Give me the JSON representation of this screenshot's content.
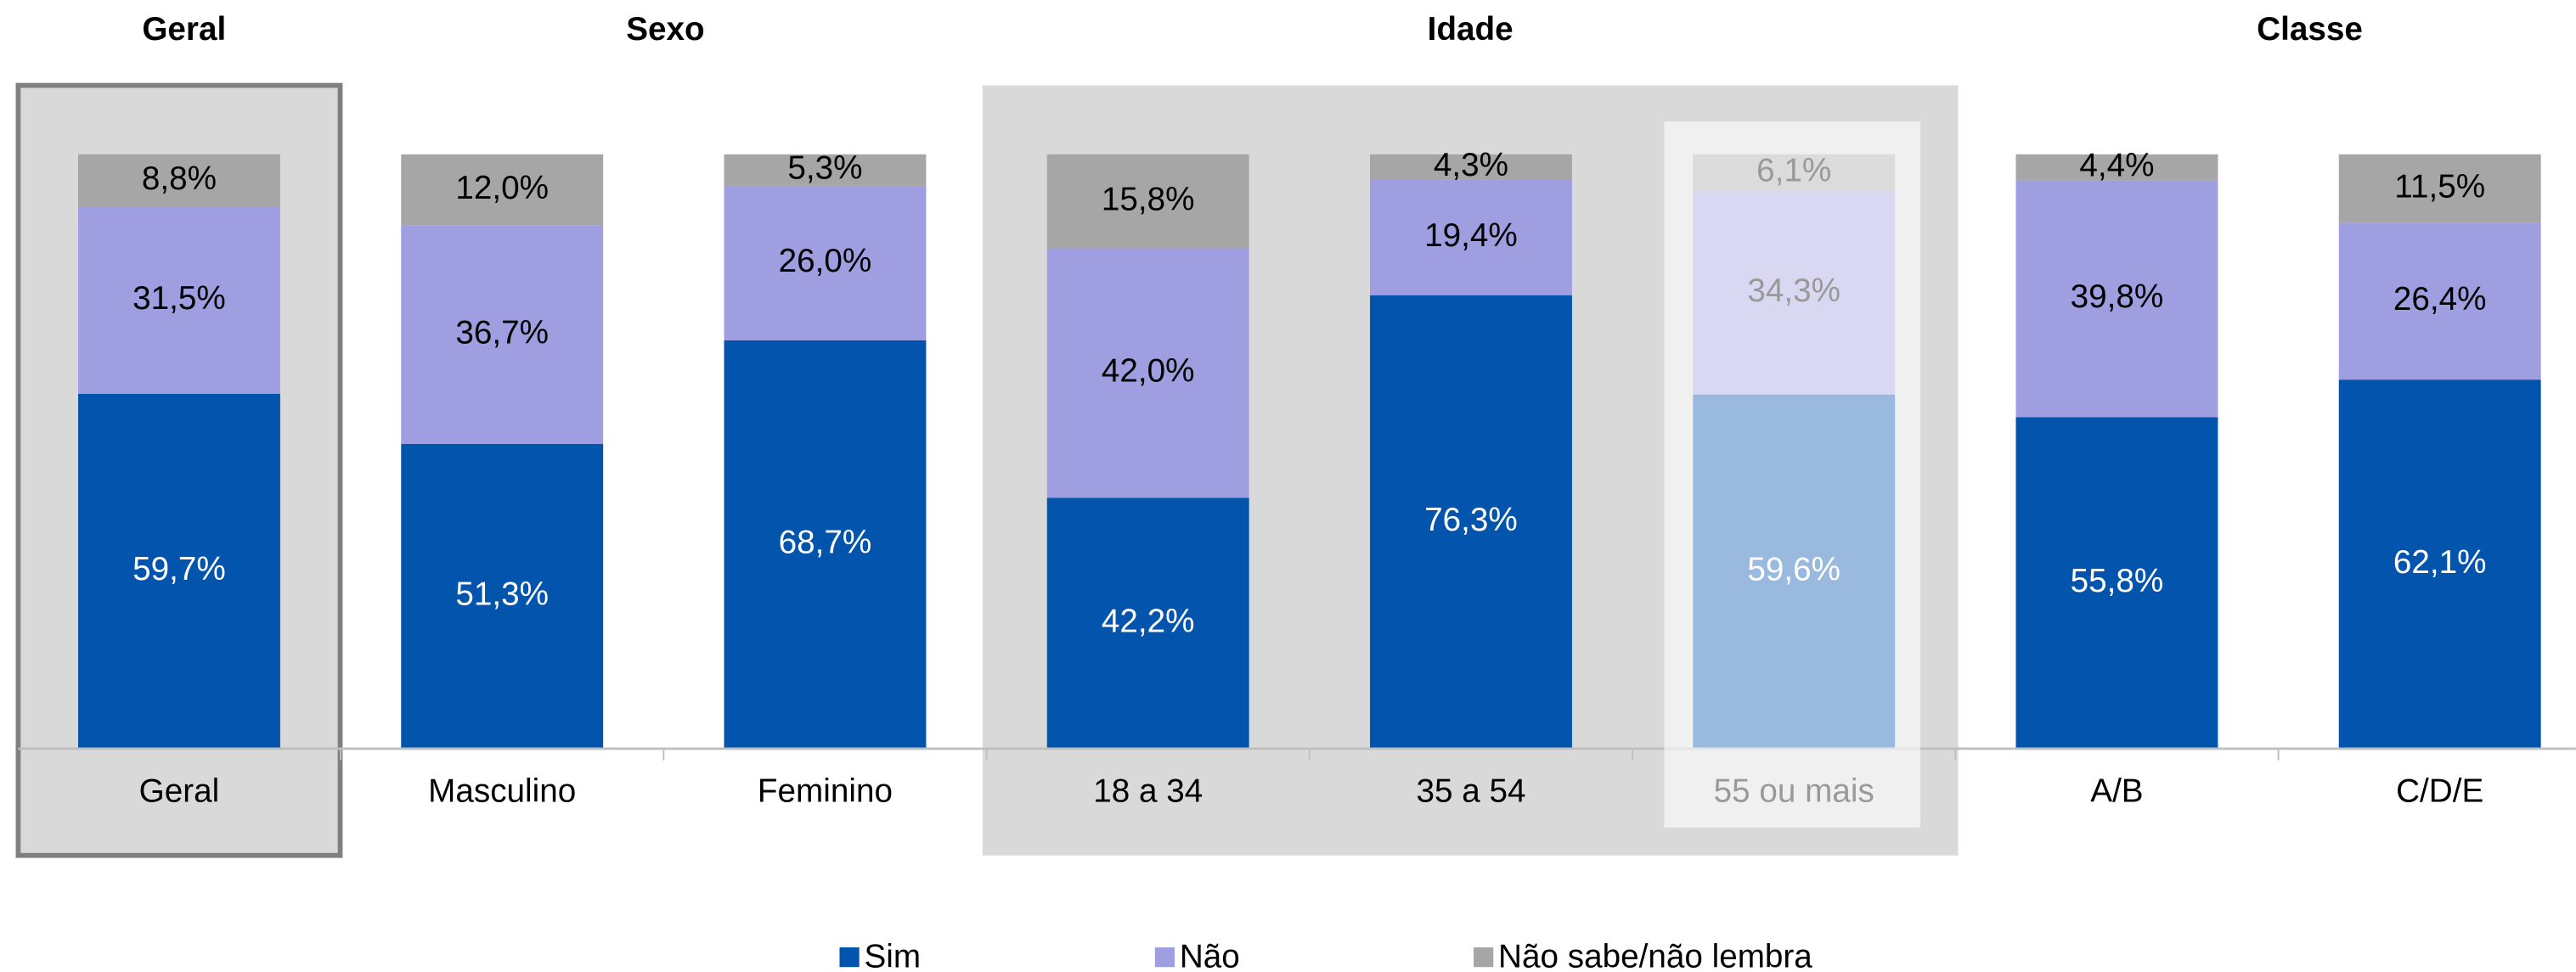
{
  "chart_data": {
    "type": "stacked_bar",
    "groups": [
      "Geral",
      "Sexo",
      "Idade",
      "Classe"
    ],
    "categories": [
      "Geral",
      "Masculino",
      "Feminino",
      "18 a 34",
      "35 a 54",
      "55 ou mais",
      "A/B",
      "C/D/E"
    ],
    "series": [
      {
        "name": "Sim",
        "color": "#0254ad",
        "values": [
          59.7,
          51.3,
          68.7,
          42.2,
          76.3,
          59.6,
          55.8,
          62.1
        ],
        "value_labels": [
          "59,7%",
          "51,3%",
          "68,7%",
          "42,2%",
          "76,3%",
          "59,6%",
          "55,8%",
          "62,1%"
        ]
      },
      {
        "name": "Não",
        "color": "#9e9ee0",
        "values": [
          31.5,
          36.7,
          26.0,
          42.0,
          19.4,
          34.3,
          39.8,
          26.4
        ],
        "value_labels": [
          "31,5%",
          "36,7%",
          "26,0%",
          "42,0%",
          "19,4%",
          "34,3%",
          "39,8%",
          "26,4%"
        ]
      },
      {
        "name": "Não sabe/não lembra",
        "color": "#a6a6a6",
        "values": [
          8.8,
          12.0,
          5.3,
          15.8,
          4.3,
          6.1,
          4.4,
          11.5
        ],
        "value_labels": [
          "8,8%",
          "12,0%",
          "5,3%",
          "15,8%",
          "4,3%",
          "6,1%",
          "4,4%",
          "11,5%"
        ]
      }
    ],
    "ylim": [
      0,
      100
    ]
  }
}
